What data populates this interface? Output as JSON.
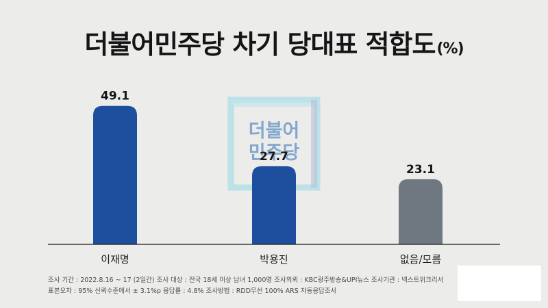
{
  "title": "더불어민주당 차기 당대표 적합도",
  "title_unit": "(%)",
  "watermark": {
    "line1": "더불어",
    "line2": "민주당"
  },
  "colors": {
    "bar_primary": "#1e4f9e",
    "bar_other": "#6f7780",
    "background": "#ececea",
    "watermark_cyan": "#7fd3e3",
    "watermark_blue": "#1d63b7"
  },
  "chart_data": {
    "type": "bar",
    "title": "더불어민주당 차기 당대표 적합도(%)",
    "categories": [
      "이재명",
      "박용진",
      "없음/모름"
    ],
    "values": [
      49.1,
      27.7,
      23.1
    ],
    "value_labels": [
      "49.1",
      "27.7",
      "23.1"
    ],
    "bar_colors": [
      "#1e4f9e",
      "#1e4f9e",
      "#6f7780"
    ],
    "ylim": [
      0,
      50
    ],
    "xlabel": "",
    "ylabel": "",
    "grid": false,
    "legend": "none"
  },
  "footnote": {
    "line1": "조사 기간 : 2022.8.16 ~ 17 (2일간)   조사 대상 : 전국 18세 이상 남녀 1,000명   조사의뢰 : KBC광주방송&UPI뉴스   조사기관 : 넥스트위크리서",
    "line2": "표본오차 : 95% 신뢰수준에서 ± 3.1%p   응답률 : 4.8%   조사방법 : RDD무선 100% ARS 자동응답조사"
  }
}
